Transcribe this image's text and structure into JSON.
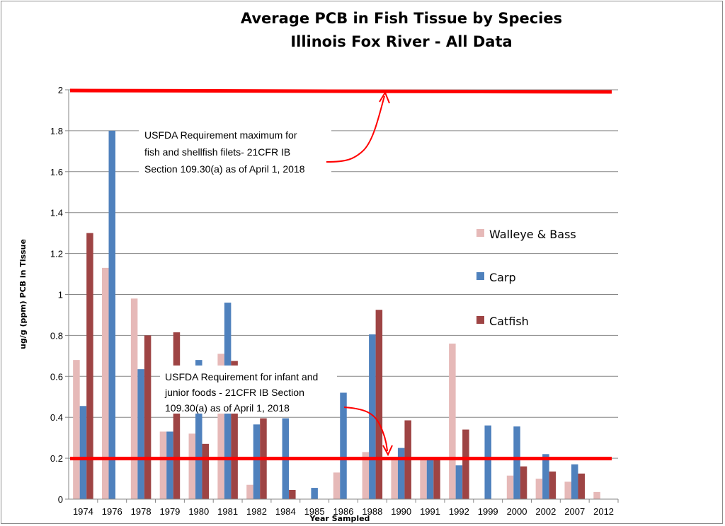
{
  "chart_data": {
    "type": "bar",
    "title": "Average PCB in Fish Tissue by Species",
    "subtitle": "Illinois Fox River - All Data",
    "xlabel": "Year Sampled",
    "ylabel": "ug/g (ppm) PCB in Tissue",
    "ylim": [
      0,
      2
    ],
    "yticks": [
      "0",
      "0.2",
      "0.4",
      "0.6",
      "0.8",
      "1",
      "1.2",
      "1.4",
      "1.6",
      "1.8",
      "2"
    ],
    "categories": [
      "1974",
      "1976",
      "1978",
      "1979",
      "1980",
      "1981",
      "1982",
      "1984",
      "1985",
      "1986",
      "1988",
      "1990",
      "1991",
      "1992",
      "1999",
      "2000",
      "2002",
      "2007",
      "2012"
    ],
    "series": [
      {
        "name": "Walleye & Bass",
        "color": "#e6b9b8",
        "values": [
          0.68,
          1.13,
          0.98,
          0.33,
          0.32,
          0.71,
          0.07,
          null,
          null,
          0.13,
          0.23,
          0.2,
          0.2,
          0.76,
          null,
          0.115,
          0.1,
          0.085,
          0.035
        ]
      },
      {
        "name": "Carp",
        "color": "#4f81bd",
        "values": [
          0.455,
          1.8,
          0.635,
          0.33,
          0.68,
          0.96,
          0.365,
          0.395,
          0.055,
          0.52,
          0.805,
          0.25,
          0.2,
          0.165,
          0.36,
          0.355,
          0.22,
          0.17,
          null
        ]
      },
      {
        "name": "Catfish",
        "color": "#9e4444",
        "values": [
          1.3,
          null,
          0.8,
          0.815,
          0.27,
          0.675,
          0.395,
          0.045,
          null,
          null,
          0.925,
          0.385,
          0.19,
          0.34,
          null,
          0.16,
          0.135,
          0.125,
          null
        ]
      }
    ],
    "reference_lines": [
      {
        "value": 2,
        "color": "#ff0000"
      },
      {
        "value": 0.2,
        "color": "#ff0000"
      }
    ],
    "annotations": [
      {
        "lines": [
          "USFDA Requirement   maximum for",
          "fish and shellfish filets- 21CFR IB",
          "Section 109.30(a) as of April 1, 2018"
        ],
        "points_to": 2
      },
      {
        "lines": [
          "USFDA Requirement   for infant and",
          "junior foods - 21CFR IB Section",
          "109.30(a) as of April 1, 2018"
        ],
        "points_to": 0.2
      }
    ],
    "legend_position": "right",
    "grid": true
  }
}
